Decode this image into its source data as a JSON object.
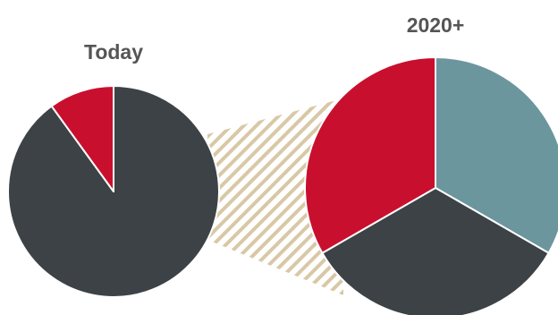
{
  "chart_data": [
    {
      "type": "pie",
      "title": "Today",
      "categories": [
        "",
        ""
      ],
      "values": [
        90,
        10
      ],
      "colors": [
        "#3c4245",
        "#c8102e"
      ]
    },
    {
      "type": "pie",
      "title": "2020+",
      "categories": [
        "",
        "",
        ""
      ],
      "values": [
        33.3,
        33.4,
        33.3
      ],
      "colors": [
        "#6c969e",
        "#3c4245",
        "#c8102e"
      ]
    }
  ],
  "colors": {
    "hatch": "#d8c8a6",
    "background": "#ffffff",
    "title": "#555555",
    "separator": "#ffffff"
  }
}
